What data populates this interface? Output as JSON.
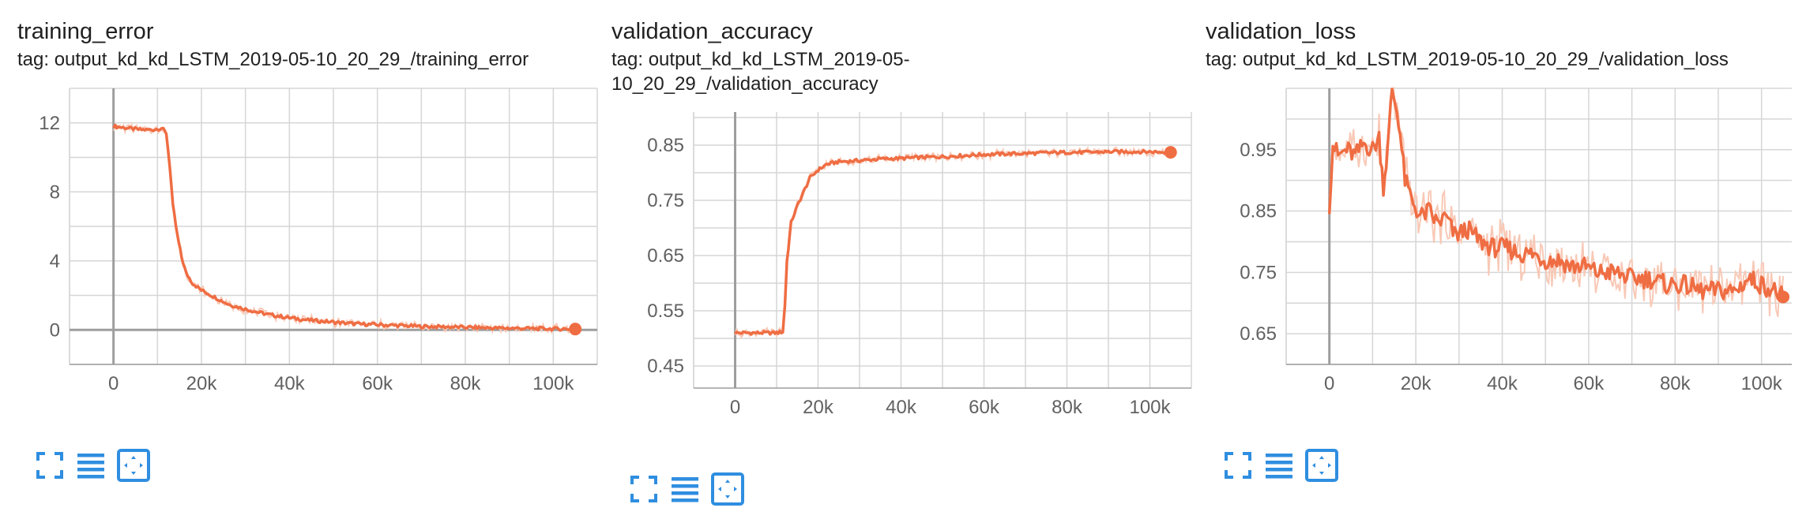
{
  "colors": {
    "line": "#ef6d43",
    "line_raw": "#f8c9b7",
    "grid": "#d6d6d6",
    "axis": "#9e9e9e",
    "icon": "#2f8ee0"
  },
  "toolbar_icons": [
    "fullscreen-icon",
    "log-scale-icon",
    "fit-domain-icon"
  ],
  "panels": [
    {
      "title": "training_error",
      "tag": "tag: output_kd_kd_LSTM_2019-05-10_20_29_/training_error",
      "chart_data": {
        "type": "line",
        "xlim": [
          -10000,
          110000
        ],
        "ylim": [
          -2,
          14
        ],
        "x_ticks": [
          0,
          20000,
          40000,
          60000,
          80000,
          100000
        ],
        "x_tick_labels": [
          "0",
          "20k",
          "40k",
          "60k",
          "80k",
          "100k"
        ],
        "y_ticks": [
          0,
          4,
          8,
          12
        ],
        "y_tick_labels": [
          "0",
          "4",
          "8",
          "12"
        ],
        "grid": true,
        "series": [
          {
            "points": [
              [
                0,
                11.8
              ],
              [
                3000,
                11.7
              ],
              [
                6000,
                11.6
              ],
              [
                9000,
                11.6
              ],
              [
                11000,
                11.7
              ],
              [
                12000,
                11.4
              ],
              [
                12800,
                9.5
              ],
              [
                13500,
                7.2
              ],
              [
                14500,
                5.5
              ],
              [
                15500,
                4.2
              ],
              [
                16500,
                3.3
              ],
              [
                18000,
                2.7
              ],
              [
                20000,
                2.3
              ],
              [
                23000,
                1.9
              ],
              [
                26000,
                1.5
              ],
              [
                30000,
                1.2
              ],
              [
                35000,
                0.9
              ],
              [
                40000,
                0.7
              ],
              [
                45000,
                0.55
              ],
              [
                50000,
                0.45
              ],
              [
                55000,
                0.35
              ],
              [
                60000,
                0.3
              ],
              [
                65000,
                0.25
              ],
              [
                70000,
                0.2
              ],
              [
                75000,
                0.18
              ],
              [
                80000,
                0.15
              ],
              [
                85000,
                0.12
              ],
              [
                90000,
                0.1
              ],
              [
                95000,
                0.08
              ],
              [
                100000,
                0.06
              ],
              [
                105000,
                0.05
              ]
            ],
            "end_point": [
              105000,
              0.05
            ]
          }
        ]
      }
    },
    {
      "title": "validation_accuracy",
      "tag": "tag: output_kd_kd_LSTM_2019-05-10_20_29_/validation_accuracy",
      "chart_data": {
        "type": "line",
        "xlim": [
          -10000,
          110000
        ],
        "ylim": [
          0.41,
          0.91
        ],
        "x_ticks": [
          0,
          20000,
          40000,
          60000,
          80000,
          100000
        ],
        "x_tick_labels": [
          "0",
          "20k",
          "40k",
          "60k",
          "80k",
          "100k"
        ],
        "y_ticks": [
          0.45,
          0.55,
          0.65,
          0.75,
          0.85
        ],
        "y_tick_labels": [
          "0.45",
          "0.55",
          "0.65",
          "0.75",
          "0.85"
        ],
        "grid": true,
        "series": [
          {
            "points": [
              [
                0,
                0.51
              ],
              [
                5000,
                0.51
              ],
              [
                10000,
                0.51
              ],
              [
                11500,
                0.512
              ],
              [
                12000,
                0.56
              ],
              [
                12500,
                0.64
              ],
              [
                13500,
                0.71
              ],
              [
                15000,
                0.74
              ],
              [
                16500,
                0.765
              ],
              [
                18000,
                0.79
              ],
              [
                20000,
                0.805
              ],
              [
                22000,
                0.815
              ],
              [
                25000,
                0.82
              ],
              [
                30000,
                0.822
              ],
              [
                35000,
                0.825
              ],
              [
                40000,
                0.826
              ],
              [
                45000,
                0.828
              ],
              [
                50000,
                0.829
              ],
              [
                55000,
                0.831
              ],
              [
                60000,
                0.833
              ],
              [
                65000,
                0.834
              ],
              [
                70000,
                0.835
              ],
              [
                75000,
                0.836
              ],
              [
                80000,
                0.837
              ],
              [
                85000,
                0.837
              ],
              [
                90000,
                0.838
              ],
              [
                95000,
                0.838
              ],
              [
                100000,
                0.838
              ],
              [
                105000,
                0.837
              ]
            ],
            "end_point": [
              105000,
              0.837
            ]
          }
        ]
      }
    },
    {
      "title": "validation_loss",
      "tag": "tag: output_kd_kd_LSTM_2019-05-10_20_29_/validation_loss",
      "chart_data": {
        "type": "line",
        "xlim": [
          -10000,
          107000
        ],
        "ylim": [
          0.6,
          1.05
        ],
        "x_ticks": [
          0,
          20000,
          40000,
          60000,
          80000,
          100000
        ],
        "x_tick_labels": [
          "0",
          "20k",
          "40k",
          "60k",
          "80k",
          "100k"
        ],
        "y_ticks": [
          0.65,
          0.75,
          0.85,
          0.95
        ],
        "y_tick_labels": [
          "0.65",
          "0.75",
          "0.85",
          "0.95"
        ],
        "grid": true,
        "series": [
          {
            "points": [
              [
                0,
                0.86
              ],
              [
                800,
                0.96
              ],
              [
                2000,
                0.94
              ],
              [
                4000,
                0.95
              ],
              [
                6000,
                0.94
              ],
              [
                8000,
                0.96
              ],
              [
                10000,
                0.95
              ],
              [
                11500,
                0.97
              ],
              [
                12500,
                0.89
              ],
              [
                13500,
                0.95
              ],
              [
                14500,
                1.05
              ],
              [
                16000,
                1.0
              ],
              [
                17500,
                0.9
              ],
              [
                19000,
                0.87
              ],
              [
                21000,
                0.84
              ],
              [
                23000,
                0.85
              ],
              [
                25000,
                0.83
              ],
              [
                27000,
                0.84
              ],
              [
                29000,
                0.81
              ],
              [
                32000,
                0.82
              ],
              [
                35000,
                0.8
              ],
              [
                38000,
                0.79
              ],
              [
                41000,
                0.79
              ],
              [
                44000,
                0.78
              ],
              [
                47000,
                0.78
              ],
              [
                50000,
                0.77
              ],
              [
                53000,
                0.77
              ],
              [
                56000,
                0.76
              ],
              [
                59000,
                0.76
              ],
              [
                62000,
                0.75
              ],
              [
                66000,
                0.75
              ],
              [
                70000,
                0.74
              ],
              [
                74000,
                0.74
              ],
              [
                78000,
                0.73
              ],
              [
                82000,
                0.73
              ],
              [
                86000,
                0.72
              ],
              [
                90000,
                0.72
              ],
              [
                94000,
                0.72
              ],
              [
                97000,
                0.74
              ],
              [
                100000,
                0.73
              ],
              [
                103000,
                0.72
              ],
              [
                105000,
                0.71
              ]
            ],
            "end_point": [
              105000,
              0.71
            ]
          }
        ]
      }
    }
  ]
}
